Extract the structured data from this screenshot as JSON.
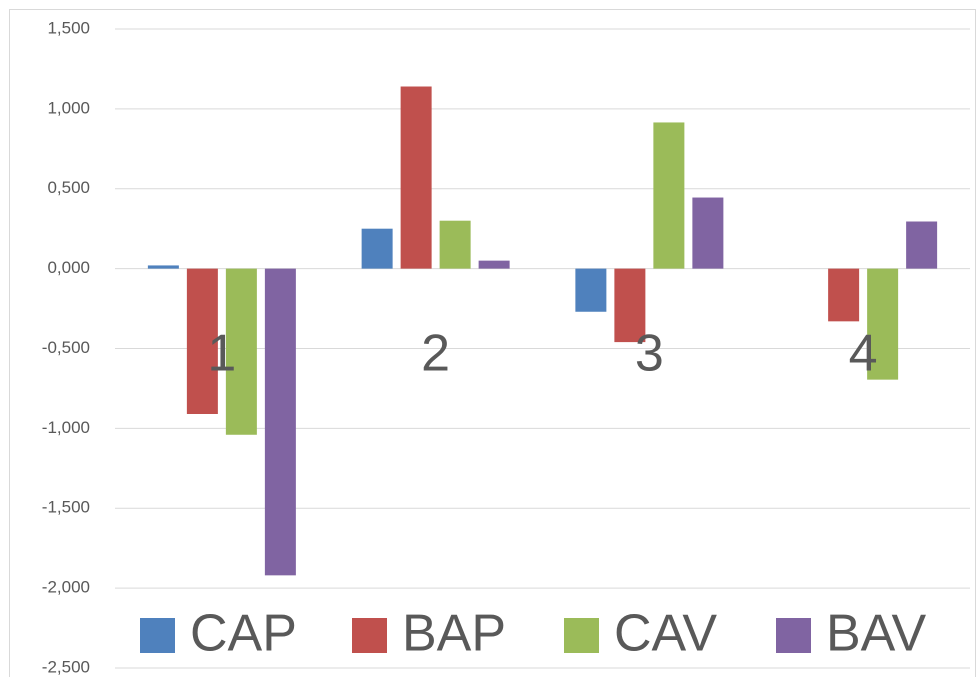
{
  "chart_data": {
    "type": "bar",
    "categories": [
      "1",
      "2",
      "3",
      "4"
    ],
    "series": [
      {
        "name": "CAP",
        "color": "#4f81bd",
        "values": [
          0.02,
          0.25,
          -0.27,
          0
        ]
      },
      {
        "name": "BAP",
        "color": "#c0504d",
        "values": [
          -0.91,
          1.14,
          -0.46,
          -0.33
        ]
      },
      {
        "name": "CAV",
        "color": "#9bbb59",
        "values": [
          -1.04,
          0.3,
          0.915,
          -0.695
        ]
      },
      {
        "name": "BAV",
        "color": "#8064a2",
        "values": [
          -1.92,
          0.05,
          0.445,
          0.295
        ]
      }
    ],
    "ylim": [
      -2.5,
      1.5
    ],
    "yticks": [
      {
        "value": -2.5,
        "label": "-2,500"
      },
      {
        "value": -2,
        "label": "-2,000"
      },
      {
        "value": -1.5,
        "label": "-1,500"
      },
      {
        "value": -1,
        "label": "-1,000"
      },
      {
        "value": -0.5,
        "label": "-0,500"
      },
      {
        "value": 0,
        "label": "0,000"
      },
      {
        "value": 0.5,
        "label": "0,500"
      },
      {
        "value": 1,
        "label": "1,000"
      },
      {
        "value": 1.5,
        "label": "1,500"
      }
    ],
    "grid": true,
    "legend": "bottom"
  }
}
